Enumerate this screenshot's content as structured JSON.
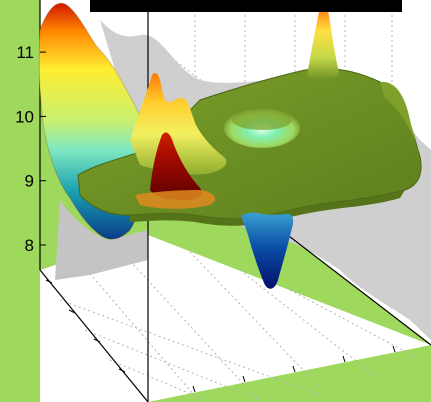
{
  "chart_data": {
    "type": "surface",
    "title": "",
    "xlabel": "",
    "ylabel": "",
    "zlabel": "",
    "zlim": [
      7.6,
      11.7
    ],
    "z_ticks": [
      {
        "value": 8,
        "label": "8"
      },
      {
        "value": 9,
        "label": "9"
      },
      {
        "value": 10,
        "label": "10"
      },
      {
        "value": 11,
        "label": "11"
      }
    ],
    "grid": true,
    "colormap": [
      "#00007f",
      "#0066cc",
      "#00cccc",
      "#7fffb0",
      "#ffff33",
      "#ff9900",
      "#e02000",
      "#7f0000"
    ],
    "baseline_plateau_value": 9.6,
    "features": [
      {
        "name": "left-ridge-peak",
        "z": 11.6
      },
      {
        "name": "left-ridge-mid",
        "z": 10.2
      },
      {
        "name": "left-trough",
        "z": 8.0
      },
      {
        "name": "central-peak",
        "z": 10.7
      },
      {
        "name": "central-red-spike",
        "z": 9.9
      },
      {
        "name": "plateau-dimple",
        "z": 9.3
      },
      {
        "name": "deep-pit",
        "z": 7.75
      },
      {
        "name": "back-right-spike",
        "z": 11.3
      }
    ],
    "background_color": "#9ed85d",
    "surface_base_color": "#6b8f23"
  }
}
